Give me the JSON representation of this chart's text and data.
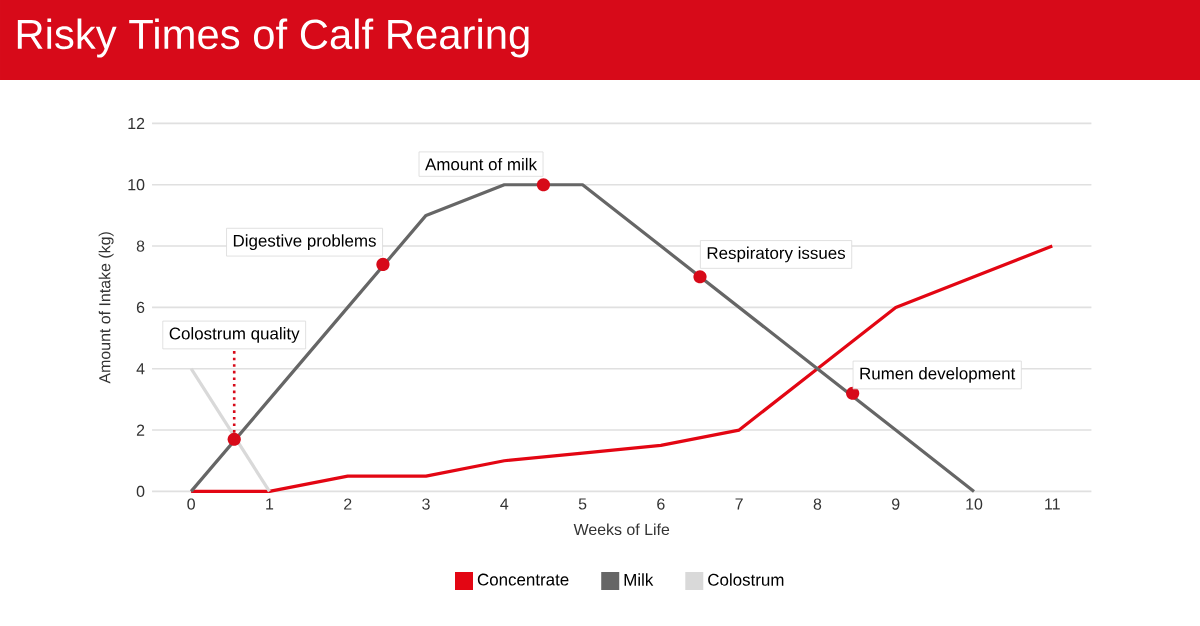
{
  "chart_data": {
    "type": "line",
    "title": "Risky Times of Calf Rearing",
    "xlabel": "Weeks of Life",
    "ylabel": "Amount  of Intake  (kg)",
    "x": [
      0,
      1,
      2,
      3,
      4,
      5,
      6,
      7,
      8,
      9,
      10,
      11
    ],
    "series": [
      {
        "name": "Concentrate",
        "color": "#e30613",
        "values": [
          0,
          0,
          0.5,
          0.5,
          1,
          1.25,
          1.5,
          2,
          4,
          6,
          7,
          8
        ]
      },
      {
        "name": "Milk",
        "color": "#666666",
        "values": [
          0,
          3,
          6,
          9,
          10,
          10,
          8,
          6,
          4,
          2,
          0,
          null
        ]
      },
      {
        "name": "Colostrum",
        "color": "#d9d9d9",
        "values": [
          4,
          0,
          null,
          null,
          null,
          null,
          null,
          null,
          null,
          null,
          null,
          null
        ]
      }
    ],
    "annotations": [
      {
        "text": "Colostrum quality",
        "x": 0.55,
        "y": 1.7
      },
      {
        "text": "Digestive problems",
        "x": 2.45,
        "y": 7.4
      },
      {
        "text": "Amount of milk",
        "x": 4.5,
        "y": 10
      },
      {
        "text": "Respiratory issues",
        "x": 6.5,
        "y": 7
      },
      {
        "text": "Rumen development",
        "x": 8.45,
        "y": 3.2
      }
    ],
    "xlim": [
      -0.5,
      11.5
    ],
    "ylim": [
      0,
      12
    ],
    "xticks": [
      0,
      1,
      2,
      3,
      4,
      5,
      6,
      7,
      8,
      9,
      10,
      11
    ],
    "yticks": [
      0,
      2,
      4,
      6,
      8,
      10,
      12
    ],
    "grid": "y",
    "legend": "bottom",
    "marker": "none",
    "line_style": "solid"
  }
}
